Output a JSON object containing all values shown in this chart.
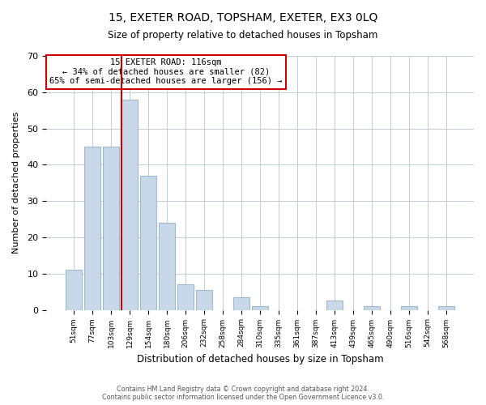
{
  "title1": "15, EXETER ROAD, TOPSHAM, EXETER, EX3 0LQ",
  "title2": "Size of property relative to detached houses in Topsham",
  "xlabel": "Distribution of detached houses by size in Topsham",
  "ylabel": "Number of detached properties",
  "bar_labels": [
    "51sqm",
    "77sqm",
    "103sqm",
    "129sqm",
    "154sqm",
    "180sqm",
    "206sqm",
    "232sqm",
    "258sqm",
    "284sqm",
    "310sqm",
    "335sqm",
    "361sqm",
    "387sqm",
    "413sqm",
    "439sqm",
    "465sqm",
    "490sqm",
    "516sqm",
    "542sqm",
    "568sqm"
  ],
  "bar_values": [
    11,
    45,
    45,
    58,
    37,
    24,
    7,
    5.5,
    0,
    3.5,
    1,
    0,
    0,
    0,
    2.5,
    0,
    1,
    0,
    1,
    0,
    1
  ],
  "bar_color": "#c8d8e8",
  "bar_edgecolor": "#a0b8cc",
  "ylim": [
    0,
    70
  ],
  "yticks": [
    0,
    10,
    20,
    30,
    40,
    50,
    60,
    70
  ],
  "marker_bin": 3,
  "marker_line_color": "#cc0000",
  "annotation_line1": "15 EXETER ROAD: 116sqm",
  "annotation_line2": "← 34% of detached houses are smaller (82)",
  "annotation_line3": "65% of semi-detached houses are larger (156) →",
  "annotation_box_edgecolor": "#cc0000",
  "footer1": "Contains HM Land Registry data © Crown copyright and database right 2024.",
  "footer2": "Contains public sector information licensed under the Open Government Licence v3.0.",
  "plot_background": "#ffffff"
}
